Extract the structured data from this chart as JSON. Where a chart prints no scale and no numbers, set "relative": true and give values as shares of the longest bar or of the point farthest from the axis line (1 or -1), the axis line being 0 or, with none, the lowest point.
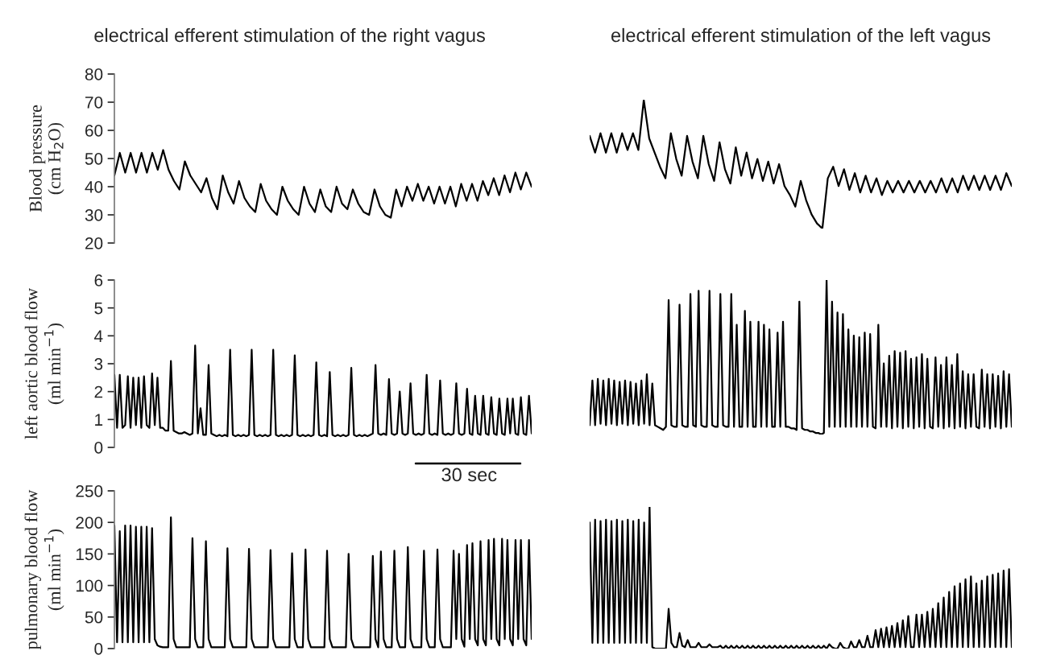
{
  "chart_data": [
    {
      "type": "line",
      "title": "electrical efferent stimulation of the right vagus",
      "ylabel": "Blood pressure\n(cm H$_{2}$O)",
      "ylim": [
        20,
        80
      ],
      "yticks": [
        20,
        30,
        40,
        50,
        60,
        70,
        80
      ],
      "tick_labels": "y",
      "categories": [
        null,
        null,
        null,
        null,
        null,
        null,
        null,
        null,
        null,
        null,
        null,
        null,
        null,
        null,
        null,
        null,
        null,
        null,
        null,
        null,
        null,
        null,
        null,
        null,
        null,
        null,
        null,
        null,
        null,
        null,
        null,
        null,
        null,
        null,
        null,
        null,
        null,
        null,
        null,
        null,
        null,
        null,
        null,
        null,
        null,
        null,
        null,
        null,
        null,
        null,
        null,
        null,
        null,
        null,
        null,
        null,
        null,
        null,
        null,
        null,
        null,
        null,
        null,
        null,
        null,
        null,
        null,
        null,
        null,
        null,
        null,
        null,
        null,
        null,
        null,
        null,
        null,
        null
      ],
      "series": [
        {
          "color": "#000000",
          "values": [
            44,
            52,
            45,
            52,
            45,
            52,
            45,
            52,
            46,
            53,
            46,
            42,
            39,
            49,
            44,
            41,
            38,
            43,
            36,
            32,
            44,
            38,
            34,
            42,
            36,
            33,
            31,
            41,
            35,
            32,
            30,
            40,
            35,
            32,
            30,
            40,
            34,
            31,
            39,
            33,
            31,
            40,
            34,
            32,
            39,
            34,
            31,
            30,
            39,
            33,
            30,
            29,
            39,
            33,
            40,
            35,
            41,
            35,
            40,
            34,
            40,
            34,
            40,
            33,
            41,
            35,
            41,
            35,
            42,
            37,
            43,
            37,
            44,
            38,
            45,
            39,
            45,
            40
          ]
        }
      ]
    },
    {
      "type": "line",
      "title": "electrical efferent stimulation of the left vagus",
      "relative": true,
      "tick_labels": false,
      "categories": [
        null,
        null,
        null,
        null,
        null,
        null,
        null,
        null,
        null,
        null,
        null,
        null,
        null,
        null,
        null,
        null,
        null,
        null,
        null,
        null,
        null,
        null,
        null,
        null,
        null,
        null,
        null,
        null,
        null,
        null,
        null,
        null,
        null,
        null,
        null,
        null,
        null,
        null,
        null,
        null,
        null,
        null,
        null,
        null,
        null,
        null,
        null,
        null,
        null,
        null,
        null,
        null,
        null,
        null,
        null,
        null,
        null,
        null,
        null,
        null,
        null,
        null,
        null,
        null,
        null,
        null,
        null,
        null,
        null,
        null,
        null,
        null,
        null,
        null,
        null,
        null,
        null,
        null,
        null
      ],
      "series": [
        {
          "color": "#000000",
          "values": [
            0.72,
            0.59,
            0.74,
            0.59,
            0.74,
            0.59,
            0.74,
            0.61,
            0.74,
            0.61,
            1,
            0.7,
            0.59,
            0.48,
            0.39,
            0.74,
            0.54,
            0.41,
            0.72,
            0.52,
            0.39,
            0.72,
            0.5,
            0.37,
            0.67,
            0.46,
            0.35,
            0.63,
            0.41,
            0.59,
            0.39,
            0.54,
            0.37,
            0.52,
            0.35,
            0.5,
            0.33,
            0.26,
            0.17,
            0.37,
            0.22,
            0.11,
            0.04,
            0,
            0.39,
            0.48,
            0.33,
            0.46,
            0.3,
            0.43,
            0.28,
            0.41,
            0.28,
            0.39,
            0.26,
            0.37,
            0.28,
            0.37,
            0.28,
            0.37,
            0.28,
            0.37,
            0.28,
            0.37,
            0.28,
            0.39,
            0.28,
            0.39,
            0.28,
            0.41,
            0.3,
            0.41,
            0.3,
            0.41,
            0.3,
            0.41,
            0.3,
            0.43,
            0.33
          ]
        }
      ]
    },
    {
      "type": "line",
      "ylabel": "left aortic blood flow\n(ml min$^{−1}$)",
      "ylim": [
        0,
        6
      ],
      "yticks": [
        0,
        1,
        2,
        3,
        4,
        5,
        6
      ],
      "tick_labels": "y",
      "annotations": [
        "30 sec"
      ],
      "categories": [
        null,
        null,
        null,
        null,
        null,
        null,
        null,
        null,
        null,
        null,
        null,
        null,
        null,
        null,
        null,
        null,
        null,
        null,
        null,
        null,
        null,
        null,
        null,
        null,
        null,
        null,
        null,
        null,
        null,
        null,
        null,
        null,
        null,
        null,
        null,
        null,
        null,
        null,
        null,
        null,
        null,
        null,
        null,
        null,
        null,
        null,
        null,
        null,
        null,
        null,
        null,
        null,
        null,
        null,
        null,
        null,
        null,
        null,
        null,
        null,
        null,
        null,
        null,
        null,
        null,
        null,
        null,
        null,
        null,
        null,
        null,
        null,
        null,
        null,
        null,
        null,
        null,
        null,
        null,
        null,
        null,
        null,
        null,
        null,
        null,
        null,
        null,
        null,
        null,
        null,
        null,
        null,
        null,
        null,
        null,
        null,
        null,
        null,
        null,
        null,
        null,
        null,
        null,
        null,
        null,
        null,
        null,
        null,
        null,
        null,
        null,
        null,
        null,
        null,
        null,
        null,
        null,
        null,
        null,
        null,
        null,
        null,
        null,
        null,
        null,
        null,
        null,
        null,
        null,
        null,
        null,
        null,
        null,
        null,
        null,
        null,
        null,
        null,
        null,
        null,
        null,
        null,
        null,
        null,
        null,
        null,
        null,
        null,
        null,
        null,
        null,
        null,
        null,
        null,
        null,
        null
      ],
      "series": [
        {
          "color": "#000000",
          "values": [
            2.6,
            0.7,
            2.6,
            0.7,
            0.8,
            2.55,
            0.7,
            2.5,
            0.8,
            2.5,
            0.7,
            2.55,
            0.8,
            0.7,
            2.65,
            0.8,
            2.5,
            0.7,
            0.7,
            0.6,
            0.6,
            3.1,
            0.6,
            0.55,
            0.5,
            0.5,
            0.55,
            0.5,
            0.45,
            0.5,
            3.65,
            0.5,
            1.4,
            0.45,
            0.45,
            2.95,
            0.5,
            0.45,
            0.4,
            0.45,
            0.4,
            0.45,
            0.4,
            3.5,
            0.45,
            0.4,
            0.45,
            0.4,
            0.45,
            0.4,
            0.45,
            3.5,
            0.45,
            0.4,
            0.45,
            0.4,
            0.45,
            0.4,
            0.45,
            3.5,
            0.45,
            0.4,
            0.45,
            0.4,
            0.45,
            0.4,
            0.45,
            3.3,
            0.45,
            0.4,
            0.45,
            0.4,
            0.45,
            0.4,
            0.45,
            3.05,
            0.45,
            0.4,
            0.45,
            0.4,
            2.7,
            0.45,
            0.4,
            0.45,
            0.4,
            0.45,
            0.4,
            0.45,
            2.85,
            0.45,
            0.4,
            0.45,
            0.4,
            0.45,
            0.4,
            0.45,
            0.5,
            2.95,
            0.5,
            0.45,
            0.5,
            0.45,
            2.45,
            0.5,
            0.45,
            0.5,
            2.0,
            0.5,
            0.45,
            0.5,
            2.3,
            0.5,
            0.45,
            0.5,
            0.45,
            0.5,
            2.6,
            0.5,
            0.45,
            0.5,
            0.45,
            2.4,
            0.5,
            0.45,
            0.5,
            0.45,
            0.5,
            2.3,
            0.5,
            0.45,
            0.5,
            2.1,
            0.5,
            0.45,
            1.85,
            0.5,
            0.45,
            1.85,
            0.5,
            0.45,
            1.8,
            0.5,
            0.45,
            1.75,
            0.5,
            0.45,
            1.75,
            0.5,
            1.75,
            0.5,
            0.45,
            1.8,
            0.5,
            0.45,
            1.85,
            0.5
          ]
        }
      ]
    },
    {
      "type": "line",
      "relative": true,
      "tick_labels": false,
      "categories": [
        null,
        null,
        null,
        null,
        null,
        null,
        null,
        null,
        null,
        null,
        null,
        null,
        null,
        null,
        null,
        null,
        null,
        null,
        null,
        null,
        null,
        null,
        null,
        null,
        null,
        null,
        null,
        null,
        null,
        null,
        null,
        null,
        null,
        null,
        null,
        null,
        null,
        null,
        null,
        null,
        null,
        null,
        null,
        null,
        null,
        null,
        null,
        null,
        null,
        null,
        null,
        null,
        null,
        null,
        null,
        null,
        null,
        null,
        null,
        null,
        null,
        null,
        null,
        null,
        null,
        null,
        null,
        null,
        null,
        null,
        null,
        null,
        null,
        null,
        null,
        null,
        null,
        null,
        null,
        null,
        null,
        null,
        null,
        null,
        null,
        null,
        null,
        null,
        null,
        null,
        null,
        null,
        null,
        null,
        null,
        null,
        null,
        null,
        null,
        null,
        null,
        null,
        null,
        null,
        null,
        null,
        null,
        null,
        null,
        null,
        null,
        null,
        null,
        null,
        null,
        null,
        null,
        null,
        null,
        null,
        null,
        null,
        null,
        null,
        null,
        null,
        null,
        null,
        null,
        null,
        null,
        null,
        null,
        null,
        null,
        null,
        null,
        null,
        null,
        null,
        null,
        null,
        null,
        null,
        null,
        null,
        null,
        null,
        null,
        null,
        null,
        null,
        null,
        null,
        null,
        null
      ],
      "series": [
        {
          "color": "#000000",
          "values": [
            0.06,
            0.35,
            0.06,
            0.36,
            0.07,
            0.35,
            0.06,
            0.36,
            0.07,
            0.35,
            0.06,
            0.34,
            0.07,
            0.35,
            0.06,
            0.34,
            0.07,
            0.33,
            0.06,
            0.35,
            0.07,
            0.39,
            0.06,
            0.33,
            0.06,
            0.05,
            0.04,
            0.03,
            0.05,
            0.87,
            0.06,
            0.05,
            0.05,
            0.84,
            0.06,
            0.05,
            0.05,
            0.91,
            0.06,
            0.05,
            0.93,
            0.06,
            0.05,
            0.05,
            0.93,
            0.06,
            0.05,
            0.05,
            0.91,
            0.06,
            0.05,
            0.05,
            0.91,
            0.05,
            0.71,
            0.05,
            0.05,
            0.8,
            0.05,
            0.73,
            0.05,
            0.05,
            0.73,
            0.05,
            0.71,
            0.05,
            0.68,
            0.05,
            0.05,
            0.66,
            0.05,
            0.73,
            0.05,
            0.05,
            0.04,
            0.04,
            0.03,
            0.86,
            0.04,
            0.03,
            0.03,
            0.02,
            0.02,
            0.01,
            0.01,
            0,
            0.01,
            1,
            0.05,
            0.86,
            0.05,
            0.79,
            0.05,
            0.78,
            0.05,
            0.68,
            0.05,
            0.64,
            0.05,
            0.63,
            0.05,
            0.66,
            0.05,
            0.65,
            0.05,
            0.04,
            0.71,
            0.05,
            0.46,
            0.05,
            0.51,
            0.04,
            0.54,
            0.05,
            0.53,
            0.04,
            0.54,
            0.05,
            0.49,
            0.04,
            0.5,
            0.05,
            0.52,
            0.04,
            0.49,
            0.05,
            0.04,
            0.5,
            0.05,
            0.45,
            0.04,
            0.5,
            0.05,
            0.45,
            0.04,
            0.52,
            0.05,
            0.41,
            0.04,
            0.39,
            0.05,
            0.39,
            0.05,
            0.04,
            0.42,
            0.05,
            0.39,
            0.04,
            0.39,
            0.05,
            0.38,
            0.04,
            0.41,
            0.05,
            0.39,
            0.05
          ]
        }
      ]
    },
    {
      "type": "line",
      "ylabel": "pulmonary blood flow\n(ml min$^{−1}$)",
      "ylim": [
        0,
        250
      ],
      "yticks": [
        0,
        50,
        100,
        150,
        200,
        250
      ],
      "tick_labels": "y",
      "categories": [
        null,
        null,
        null,
        null,
        null,
        null,
        null,
        null,
        null,
        null,
        null,
        null,
        null,
        null,
        null,
        null,
        null,
        null,
        null,
        null,
        null,
        null,
        null,
        null,
        null,
        null,
        null,
        null,
        null,
        null,
        null,
        null,
        null,
        null,
        null,
        null,
        null,
        null,
        null,
        null,
        null,
        null,
        null,
        null,
        null,
        null,
        null,
        null,
        null,
        null,
        null,
        null,
        null,
        null,
        null,
        null,
        null,
        null,
        null,
        null,
        null,
        null,
        null,
        null,
        null,
        null,
        null,
        null,
        null,
        null,
        null,
        null,
        null,
        null,
        null,
        null,
        null,
        null,
        null,
        null,
        null,
        null,
        null,
        null,
        null,
        null,
        null,
        null,
        null,
        null,
        null,
        null,
        null,
        null,
        null,
        null,
        null,
        null,
        null,
        null,
        null,
        null,
        null,
        null,
        null,
        null,
        null,
        null,
        null,
        null,
        null,
        null,
        null,
        null,
        null,
        null,
        null,
        null,
        null,
        null,
        null,
        null,
        null,
        null,
        null,
        null,
        null,
        null,
        null,
        null,
        null,
        null,
        null,
        null,
        null,
        null,
        null,
        null,
        null,
        null,
        null,
        null,
        null,
        null,
        null,
        null,
        null,
        null,
        null,
        null,
        null,
        null,
        null,
        null,
        null,
        null
      ],
      "series": [
        {
          "color": "#000000",
          "values": [
            195,
            10,
            186,
            10,
            195,
            10,
            195,
            10,
            193,
            10,
            193,
            10,
            193,
            10,
            191,
            15,
            5,
            3,
            2,
            2,
            2,
            208,
            15,
            2,
            2,
            2,
            2,
            2,
            2,
            175,
            15,
            2,
            2,
            2,
            170,
            15,
            2,
            2,
            2,
            2,
            2,
            2,
            159,
            15,
            2,
            2,
            2,
            2,
            2,
            2,
            158,
            15,
            2,
            2,
            2,
            2,
            2,
            2,
            156,
            15,
            2,
            2,
            2,
            2,
            2,
            2,
            151,
            15,
            2,
            2,
            2,
            157,
            15,
            2,
            2,
            2,
            2,
            2,
            2,
            155,
            15,
            2,
            2,
            2,
            2,
            2,
            2,
            150,
            15,
            2,
            2,
            2,
            2,
            2,
            2,
            2,
            147,
            15,
            2,
            154,
            15,
            2,
            2,
            2,
            155,
            15,
            2,
            2,
            2,
            161,
            15,
            2,
            2,
            2,
            2,
            155,
            15,
            2,
            2,
            2,
            157,
            15,
            2,
            2,
            2,
            2,
            155,
            15,
            150,
            15,
            3,
            164,
            15,
            167,
            15,
            5,
            170,
            15,
            5,
            172,
            15,
            174,
            15,
            5,
            174,
            15,
            172,
            15,
            5,
            172,
            15,
            172,
            15,
            5,
            172,
            15
          ]
        }
      ]
    },
    {
      "type": "line",
      "relative": true,
      "tick_labels": false,
      "categories": [
        null,
        null,
        null,
        null,
        null,
        null,
        null,
        null,
        null,
        null,
        null,
        null,
        null,
        null,
        null,
        null,
        null,
        null,
        null,
        null,
        null,
        null,
        null,
        null,
        null,
        null,
        null,
        null,
        null,
        null,
        null,
        null,
        null,
        null,
        null,
        null,
        null,
        null,
        null,
        null,
        null,
        null,
        null,
        null,
        null,
        null,
        null,
        null,
        null,
        null,
        null,
        null,
        null,
        null,
        null,
        null,
        null,
        null,
        null,
        null,
        null,
        null,
        null,
        null,
        null,
        null,
        null,
        null,
        null,
        null,
        null,
        null,
        null,
        null,
        null,
        null,
        null,
        null,
        null,
        null,
        null,
        null,
        null,
        null,
        null,
        null,
        null,
        null,
        null,
        null,
        null,
        null,
        null,
        null,
        null,
        null,
        null,
        null,
        null,
        null,
        null,
        null,
        null,
        null,
        null,
        null,
        null,
        null,
        null,
        null,
        null,
        null,
        null,
        null,
        null,
        null,
        null,
        null,
        null,
        null,
        null,
        null,
        null,
        null,
        null,
        null,
        null,
        null,
        null,
        null,
        null,
        null,
        null,
        null,
        null,
        null,
        null,
        null,
        null,
        null,
        null,
        null,
        null,
        null,
        null,
        null,
        null,
        null,
        null,
        null,
        null,
        null,
        null,
        null,
        null,
        null
      ],
      "series": [
        {
          "color": "#000000",
          "values": [
            0.89,
            0.04,
            0.91,
            0.04,
            0.9,
            0.04,
            0.91,
            0.04,
            0.9,
            0.04,
            0.91,
            0.04,
            0.9,
            0.04,
            0.91,
            0.04,
            0.9,
            0.04,
            0.91,
            0.04,
            0.89,
            0.04,
            1,
            0.01,
            0,
            0,
            0,
            0,
            0,
            0.28,
            0.04,
            0.01,
            0.01,
            0.11,
            0.02,
            0.01,
            0.06,
            0.01,
            0.01,
            0.01,
            0.04,
            0.01,
            0.01,
            0.01,
            0.03,
            0.01,
            0.01,
            0.01,
            0.02,
            0,
            0.02,
            0,
            0.02,
            0,
            0.02,
            0,
            0.02,
            0,
            0.02,
            0,
            0.02,
            0,
            0.02,
            0,
            0.02,
            0,
            0.02,
            0,
            0.02,
            0,
            0.02,
            0,
            0.02,
            0,
            0.02,
            0,
            0.02,
            0,
            0.02,
            0,
            0.02,
            0,
            0.02,
            0,
            0.02,
            0,
            0.02,
            0,
            0.03,
            0.01,
            0,
            0,
            0.04,
            0.01,
            0,
            0,
            0.05,
            0.01,
            0.01,
            0.06,
            0.01,
            0.01,
            0.09,
            0.01,
            0.01,
            0.13,
            0.01,
            0.14,
            0.01,
            0.15,
            0.01,
            0.16,
            0.01,
            0.18,
            0.01,
            0.2,
            0.01,
            0.23,
            0.01,
            0.01,
            0.24,
            0.01,
            0.24,
            0.01,
            0.26,
            0.01,
            0.28,
            0.01,
            0.32,
            0.01,
            0.36,
            0.01,
            0.4,
            0.01,
            0.44,
            0.01,
            0.46,
            0.01,
            0.49,
            0.01,
            0.51,
            0.01,
            0.46,
            0.01,
            0.48,
            0.01,
            0.51,
            0.01,
            0.52,
            0.01,
            0.53,
            0.01,
            0.55,
            0.01,
            0.56,
            0.01
          ]
        }
      ]
    }
  ]
}
